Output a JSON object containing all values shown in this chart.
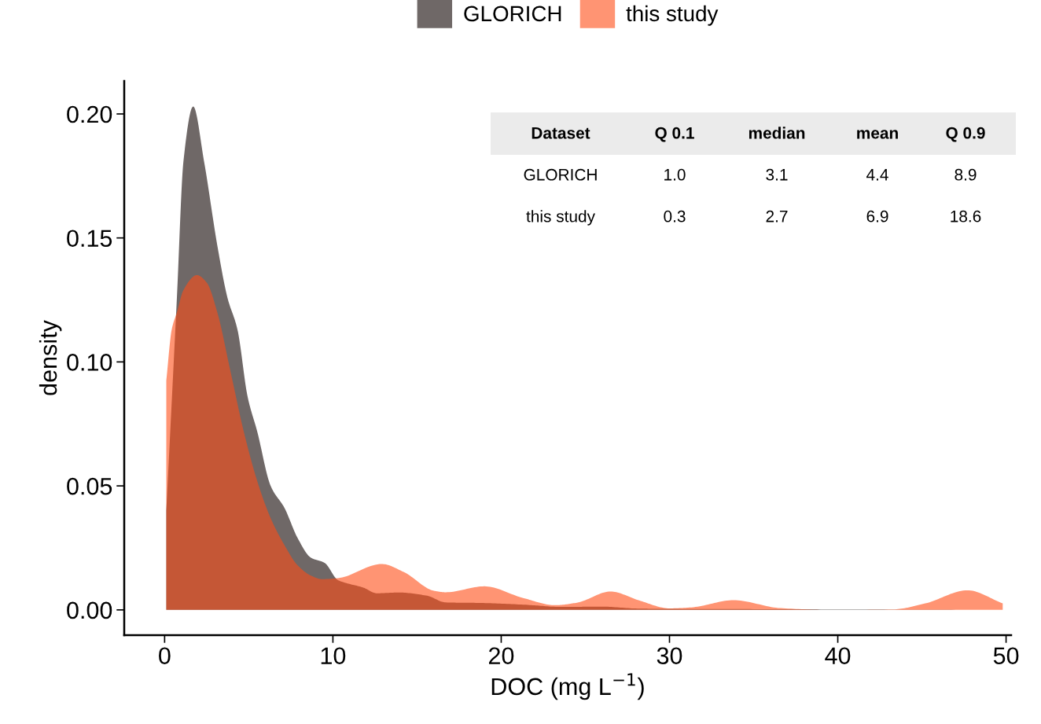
{
  "chart_data": {
    "type": "area",
    "xlabel": "DOC (mg L$^{−1}$)",
    "ylabel": "density",
    "xlim": [
      -2.4,
      50.3
    ],
    "xticks": [
      0,
      10,
      20,
      30,
      40,
      50
    ],
    "ylim": [
      -0.0102,
      0.2133
    ],
    "yticks": [
      {
        "value": 0,
        "label": "0.00"
      },
      {
        "value": 0.05,
        "label": "0.05"
      },
      {
        "value": 0.1,
        "label": "0.10"
      },
      {
        "value": 0.15,
        "label": "0.15"
      },
      {
        "value": 0.2,
        "label": "0.20"
      }
    ],
    "grid": false,
    "legend": "top",
    "series": [
      {
        "name": "GLORICH",
        "color": "#6f6867",
        "x": [
          0.1,
          0.73,
          1.12,
          1.7,
          2.34,
          3.13,
          3.73,
          4.33,
          4.93,
          5.5,
          6.3,
          7.13,
          7.9,
          8.7,
          9.5,
          10.3,
          10.7,
          11.8,
          12.6,
          13.9,
          15.6,
          16.7,
          18.8,
          21.6,
          23.5,
          26,
          28.2,
          30,
          35,
          40,
          45,
          50
        ],
        "values": [
          0.04,
          0.126,
          0.181,
          0.203,
          0.181,
          0.147,
          0.126,
          0.113,
          0.086,
          0.072,
          0.05,
          0.041,
          0.029,
          0.021,
          0.019,
          0.012,
          0.011,
          0.009,
          0.0067,
          0.007,
          0.0057,
          0.003,
          0.0028,
          0.002,
          0.0012,
          0.0013,
          0.0005,
          0.0004,
          0.0003,
          0.0002,
          0.0001,
          0.0
        ]
      },
      {
        "name": "this study",
        "color": "#ff9473",
        "x": [
          0.1,
          0.42,
          0.73,
          1.12,
          1.92,
          2.5,
          3.13,
          3.9,
          4.7,
          5.5,
          6.3,
          7.13,
          7.9,
          8.7,
          9.35,
          10.3,
          12.9,
          14.2,
          16,
          16.7,
          19,
          21.3,
          23.2,
          24.5,
          26.5,
          28.2,
          30,
          31.3,
          33.8,
          36.6,
          39.7,
          43.3,
          45.2,
          47.7,
          49.8
        ],
        "values": [
          0.0925,
          0.113,
          0.12,
          0.129,
          0.135,
          0.132,
          0.12,
          0.0966,
          0.072,
          0.052,
          0.037,
          0.026,
          0.018,
          0.0138,
          0.0124,
          0.0128,
          0.0185,
          0.0153,
          0.0077,
          0.0071,
          0.0095,
          0.0048,
          0.0019,
          0.0029,
          0.0074,
          0.0038,
          0.0006,
          0.001,
          0.0039,
          0.0007,
          0.0,
          0.0002,
          0.0026,
          0.0079,
          0.0026
        ]
      }
    ],
    "annotations": [
      "Dataset",
      "Q 0.1",
      "median",
      "mean",
      "Q 0.9",
      "GLORICH",
      "1.0",
      "3.1",
      "4.4",
      "8.9",
      "this study",
      "0.3",
      "2.7",
      "6.9",
      "18.6"
    ]
  }
}
